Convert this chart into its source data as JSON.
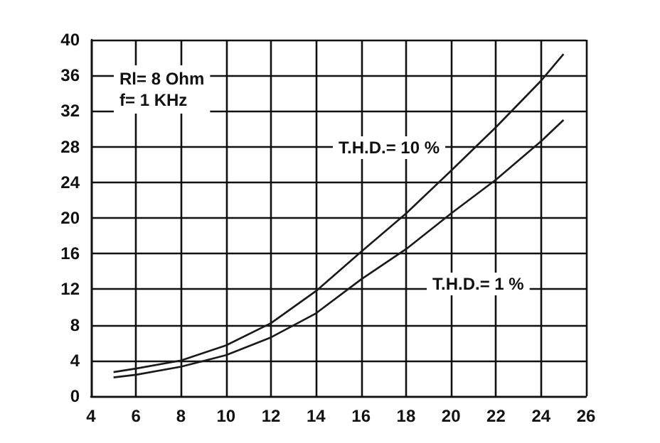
{
  "chart_data": {
    "type": "line",
    "x": [
      5,
      6,
      8,
      10,
      12,
      14,
      16,
      18,
      20,
      22,
      24,
      25
    ],
    "series": [
      {
        "color": "#1a1a1a",
        "values": [
          2.7,
          3.1,
          4.0,
          5.7,
          8.2,
          11.8,
          16.2,
          20.5,
          25.3,
          30.2,
          35.4,
          38.4
        ]
      },
      {
        "color": "#1a1a1a",
        "values": [
          2.1,
          2.4,
          3.3,
          4.6,
          6.6,
          9.3,
          13.1,
          16.5,
          20.5,
          24.3,
          28.6,
          31.0
        ]
      }
    ],
    "xlim": [
      4,
      26
    ],
    "xticks": [
      4,
      6,
      8,
      10,
      12,
      14,
      16,
      18,
      20,
      22,
      24,
      26
    ],
    "ylim": [
      0,
      40
    ],
    "yticks": [
      0,
      4,
      8,
      12,
      16,
      20,
      24,
      28,
      32,
      36,
      40
    ],
    "grid": true,
    "marker": "none",
    "line_style": "solid",
    "annotations": [
      "Rl= 8 Ohm",
      "f= 1 KHz",
      "T.H.D.= 10 %",
      "T.H.D.= 1 %"
    ]
  }
}
